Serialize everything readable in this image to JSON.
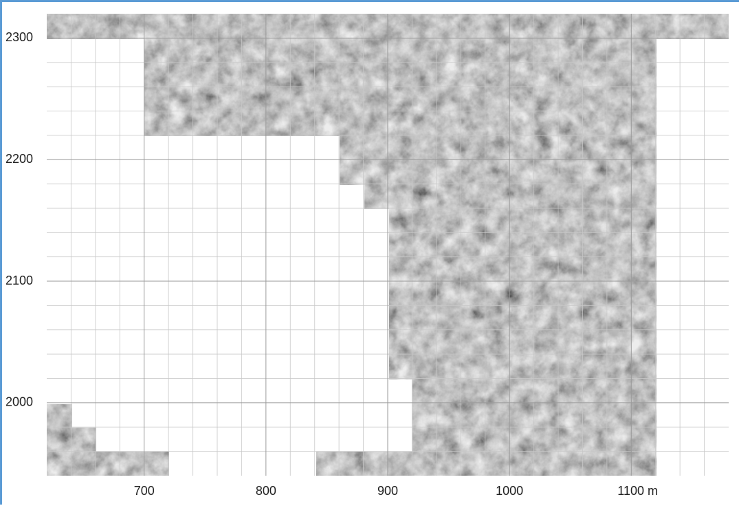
{
  "chart_data": {
    "type": "map",
    "xlim": [
      620,
      1180
    ],
    "ylim": [
      1940,
      2320
    ],
    "xticks": [
      700,
      800,
      900,
      1000,
      {
        "value": 1100,
        "label": "1100 m"
      }
    ],
    "yticks": [
      2000,
      2100,
      2200,
      2300
    ],
    "xminorticks": [
      640,
      660,
      680,
      720,
      740,
      760,
      780,
      820,
      840,
      860,
      880,
      920,
      940,
      960,
      980,
      1020,
      1040,
      1060,
      1080,
      1120,
      1140,
      1160
    ],
    "yminorticks": [
      1960,
      1980,
      2020,
      2040,
      2060,
      2080,
      2120,
      2140,
      2160,
      2180,
      2220,
      2240,
      2260,
      2280
    ],
    "grid": true
  }
}
